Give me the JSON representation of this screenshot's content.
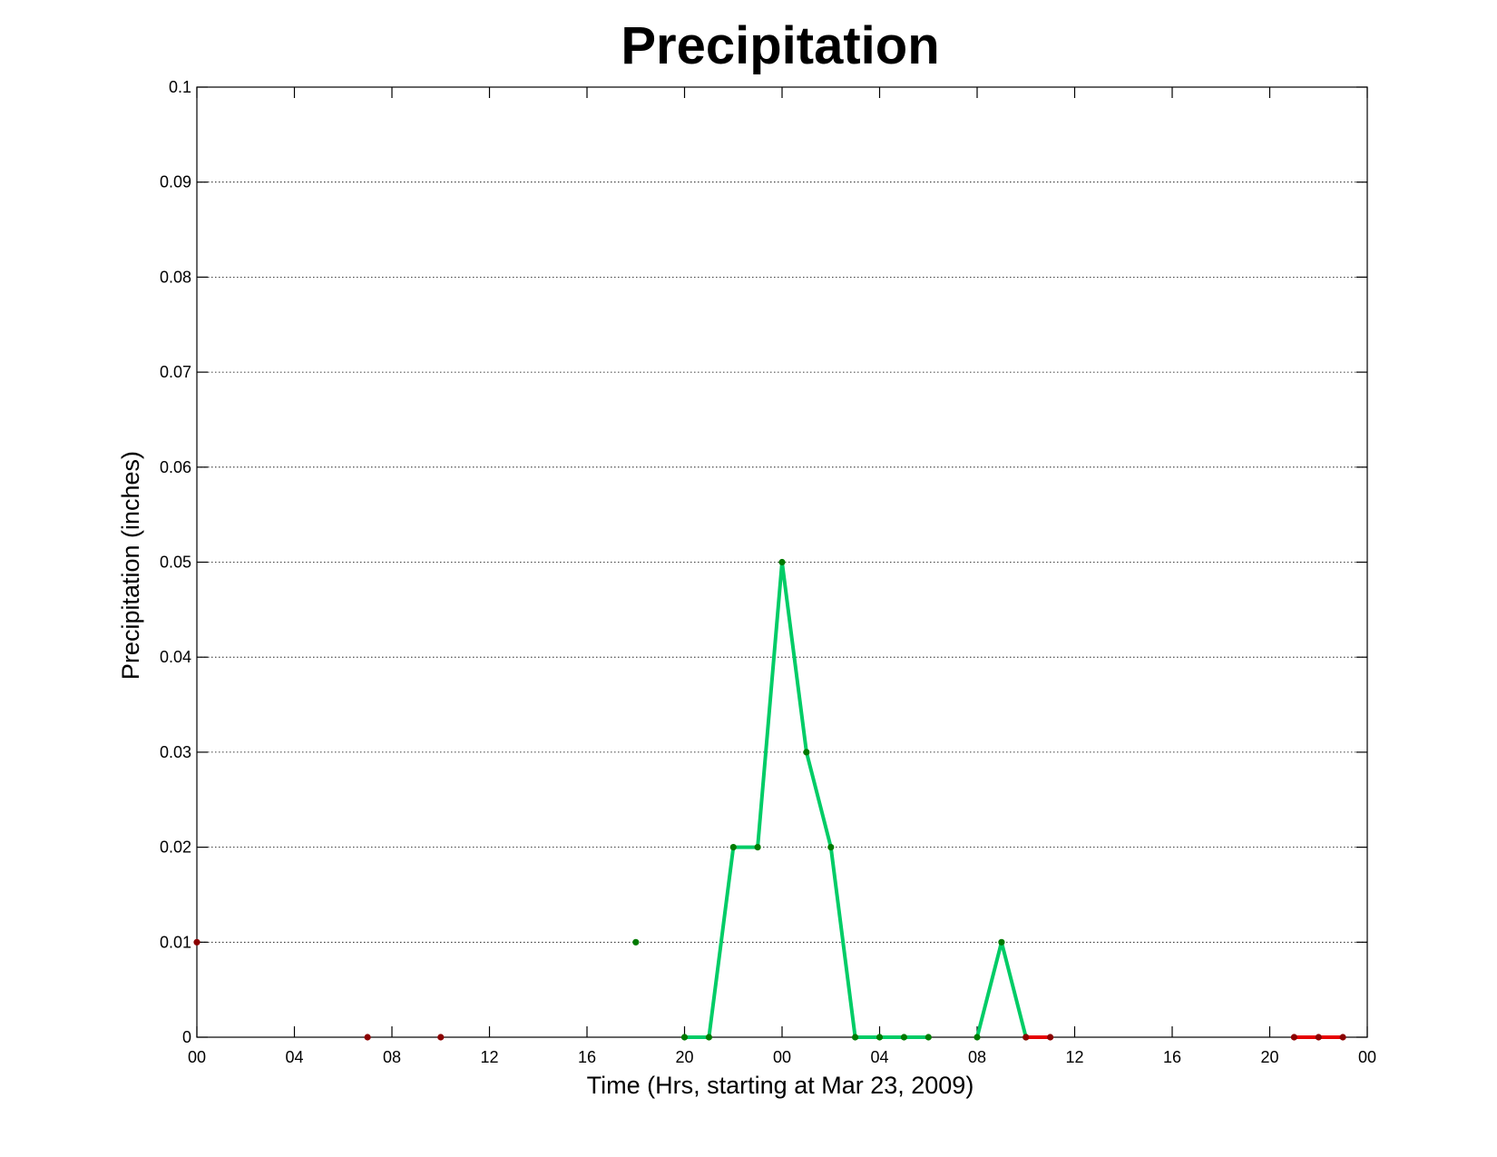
{
  "chart_data": {
    "type": "line",
    "title": "Precipitation",
    "xlabel": "Time (Hrs, starting at Mar 23, 2009)",
    "ylabel": "Precipitation (inches)",
    "x_unit": "hours",
    "xlim": [
      0,
      48
    ],
    "ylim": [
      0,
      0.1
    ],
    "x_tick_values": [
      0,
      4,
      8,
      12,
      16,
      20,
      24,
      28,
      32,
      36,
      40,
      44,
      48
    ],
    "x_tick_labels": [
      "00",
      "04",
      "08",
      "12",
      "16",
      "20",
      "00",
      "04",
      "08",
      "12",
      "16",
      "20",
      "00"
    ],
    "y_ticks": [
      0,
      0.01,
      0.02,
      0.03,
      0.04,
      0.05,
      0.06,
      0.07,
      0.08,
      0.09,
      0.1
    ],
    "y_tick_labels": [
      "0",
      "0.01",
      "0.02",
      "0.03",
      "0.04",
      "0.05",
      "0.06",
      "0.07",
      "0.08",
      "0.09",
      "0.1"
    ],
    "grid": true,
    "series": [
      {
        "color": "#00cc66",
        "marker_color": "#007a00",
        "segments": [
          [
            [
              18,
              0.01
            ]
          ],
          [
            [
              20,
              0
            ],
            [
              21,
              0
            ],
            [
              22,
              0.02
            ],
            [
              23,
              0.02
            ],
            [
              24,
              0.05
            ],
            [
              25,
              0.03
            ],
            [
              26,
              0.02
            ],
            [
              27,
              0
            ],
            [
              28,
              0
            ],
            [
              29,
              0
            ],
            [
              30,
              0
            ]
          ],
          [
            [
              32,
              0
            ],
            [
              33,
              0.01
            ],
            [
              34,
              0
            ]
          ]
        ]
      },
      {
        "color": "#e60000",
        "marker_color": "#8b0000",
        "segments": [
          [
            [
              0,
              0.01
            ]
          ],
          [
            [
              7,
              0
            ]
          ],
          [
            [
              10,
              0
            ]
          ],
          [
            [
              34,
              0
            ],
            [
              35,
              0
            ]
          ],
          [
            [
              45,
              0
            ],
            [
              46,
              0
            ],
            [
              47,
              0
            ]
          ]
        ]
      }
    ]
  }
}
